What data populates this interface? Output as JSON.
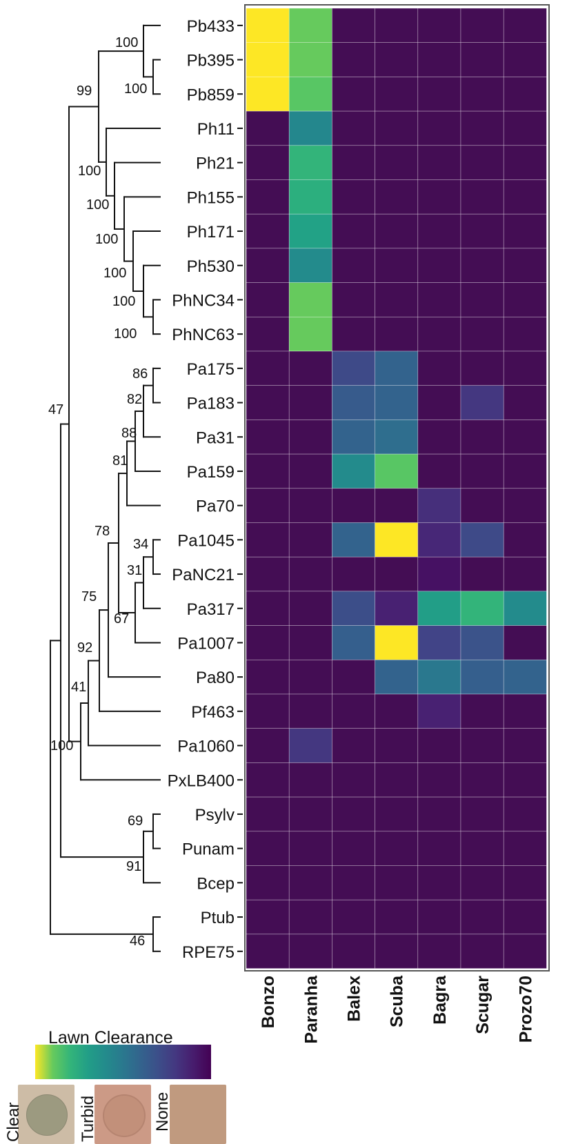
{
  "chart_data": {
    "type": "heatmap",
    "title": "",
    "xlabel": "",
    "ylabel": "",
    "rows": [
      "Pb433",
      "Pb395",
      "Pb859",
      "Ph11",
      "Ph21",
      "Ph155",
      "Ph171",
      "Ph530",
      "PhNC34",
      "PhNC63",
      "Pa175",
      "Pa183",
      "Pa31",
      "Pa159",
      "Pa70",
      "Pa1045",
      "PaNC21",
      "Pa317",
      "Pa1007",
      "Pa80",
      "Pf463",
      "Pa1060",
      "PxLB400",
      "Psylv",
      "Punam",
      "Bcep",
      "Ptub",
      "RPE75"
    ],
    "columns": [
      "Bonzo",
      "Paranha",
      "Balex",
      "Scuba",
      "Bagra",
      "Scugar",
      "Prozo70"
    ],
    "value_range": [
      0,
      1
    ],
    "values": [
      [
        1.0,
        0.9,
        0,
        0,
        0,
        0,
        0
      ],
      [
        1.0,
        0.9,
        0,
        0,
        0,
        0,
        0
      ],
      [
        1.0,
        0.88,
        0,
        0,
        0,
        0,
        0
      ],
      [
        0,
        0.58,
        0,
        0,
        0,
        0,
        0
      ],
      [
        0,
        0.8,
        0,
        0,
        0,
        0,
        0
      ],
      [
        0,
        0.78,
        0,
        0,
        0,
        0,
        0
      ],
      [
        0,
        0.72,
        0,
        0,
        0,
        0,
        0
      ],
      [
        0,
        0.6,
        0,
        0,
        0,
        0,
        0
      ],
      [
        0,
        0.9,
        0,
        0,
        0,
        0,
        0
      ],
      [
        0,
        0.9,
        0,
        0,
        0,
        0,
        0
      ],
      [
        0,
        0,
        0.28,
        0.4,
        0,
        0,
        0
      ],
      [
        0,
        0,
        0.36,
        0.4,
        0,
        0.2,
        0
      ],
      [
        0,
        0,
        0.4,
        0.45,
        0,
        0,
        0
      ],
      [
        0,
        0,
        0.6,
        0.88,
        0,
        0,
        0
      ],
      [
        0,
        0,
        0,
        0,
        0.17,
        0,
        0
      ],
      [
        0,
        0,
        0.4,
        1.0,
        0.14,
        0.28,
        0
      ],
      [
        0,
        0,
        0,
        0,
        0.06,
        0,
        0
      ],
      [
        0,
        0,
        0.3,
        0.12,
        0.7,
        0.8,
        0.6
      ],
      [
        0,
        0,
        0.38,
        1.0,
        0.25,
        0.32,
        0
      ],
      [
        0,
        0,
        0,
        0.4,
        0.5,
        0.38,
        0.4
      ],
      [
        0,
        0,
        0,
        0,
        0.12,
        0,
        0
      ],
      [
        0,
        0.2,
        0,
        0,
        0,
        0,
        0
      ],
      [
        0,
        0,
        0,
        0,
        0,
        0,
        0
      ],
      [
        0,
        0,
        0,
        0,
        0,
        0,
        0
      ],
      [
        0,
        0,
        0,
        0,
        0,
        0,
        0
      ],
      [
        0,
        0,
        0,
        0,
        0,
        0,
        0
      ],
      [
        0,
        0,
        0,
        0,
        0,
        0,
        0
      ],
      [
        0,
        0,
        0,
        0,
        0,
        0,
        0
      ]
    ],
    "colormap": "viridis (high = yellow, low = dark purple)",
    "colors": {
      "low": "#440d54",
      "q1": "#3b528b",
      "mid": "#21918c",
      "q3": "#5ec962",
      "high": "#fde725"
    },
    "tree": {
      "type": "phylogenetic dendrogram",
      "bootstrap_values": [
        "100",
        "100",
        "99",
        "100",
        "100",
        "100",
        "100",
        "100",
        "100",
        "86",
        "82",
        "88",
        "81",
        "78",
        "34",
        "31",
        "67",
        "75",
        "92",
        "41",
        "100",
        "47",
        "69",
        "91",
        "46"
      ]
    },
    "legend": {
      "title": "Lawn Clearance",
      "placement": "bottom-left",
      "plaque_labels": [
        "Clear",
        "Turbid",
        "None"
      ]
    }
  }
}
